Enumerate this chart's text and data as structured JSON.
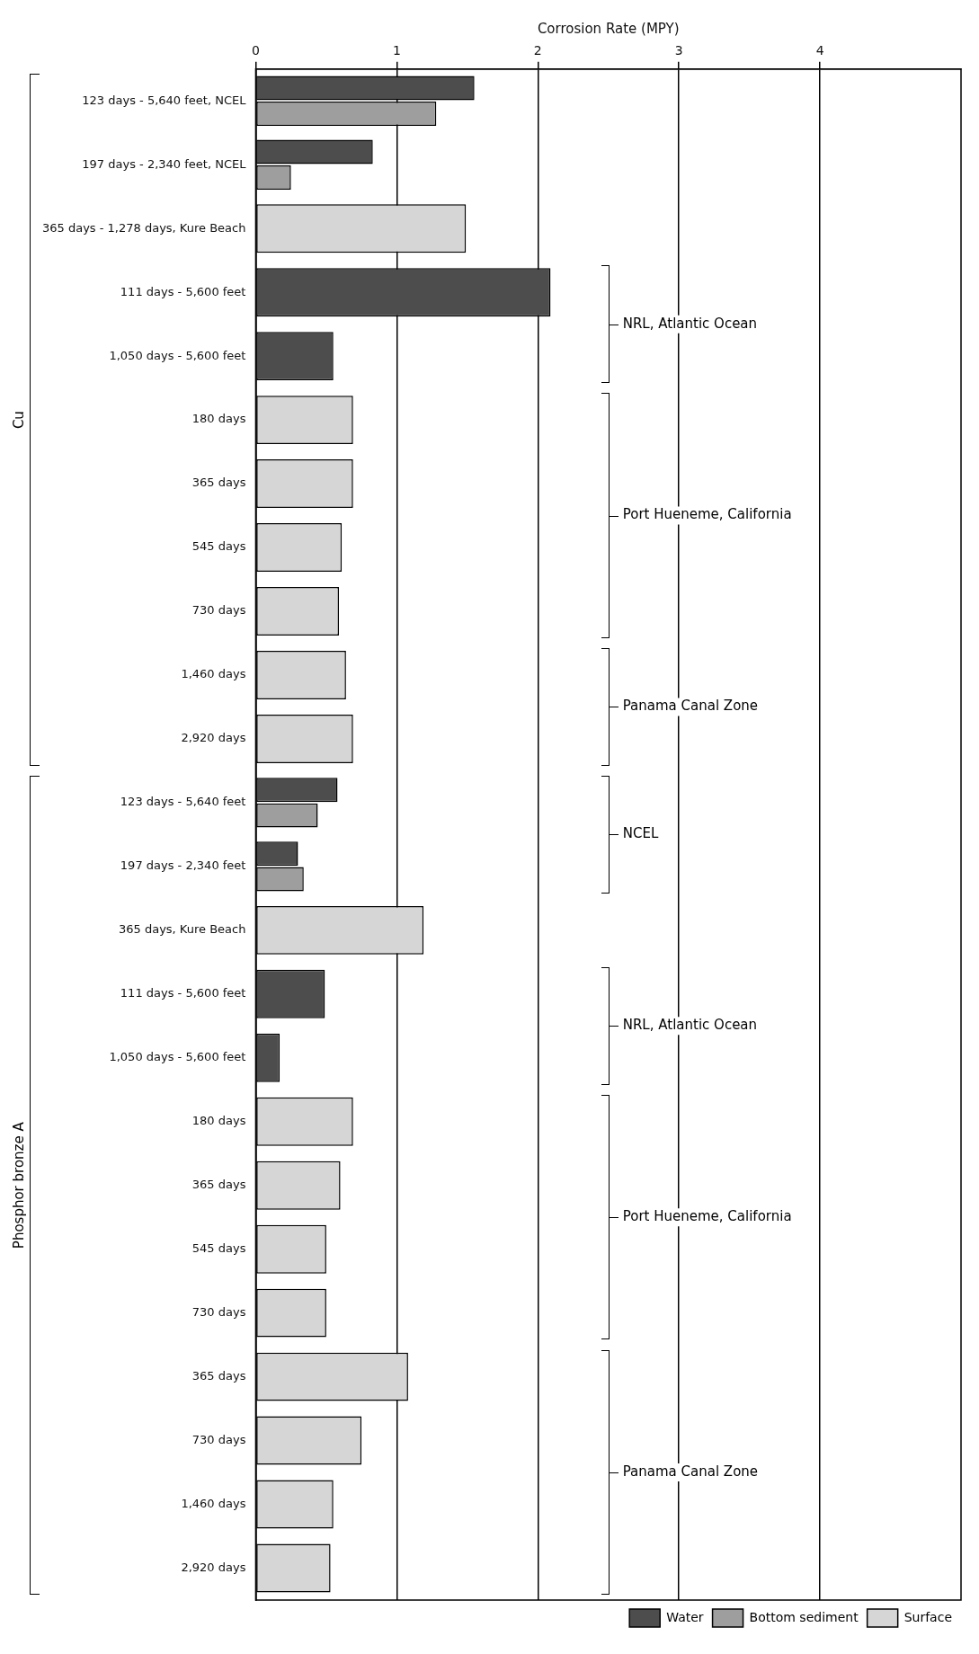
{
  "chart_data": {
    "type": "bar",
    "orientation": "horizontal",
    "xlabel": "Corrosion Rate (MPY)",
    "categories": [
      "123 days - 5,640 feet, NCEL",
      "197 days - 2,340 feet, NCEL",
      "365 days - 1,278 days, Kure Beach",
      "111 days - 5,600 feet",
      "1,050 days - 5,600 feet",
      "180 days",
      "365 days",
      "545 days",
      "730 days",
      "1,460 days",
      "2,920 days",
      "123 days - 5,640 feet",
      "197 days - 2,340 feet",
      "365 days, Kure Beach",
      "111 days - 5,600 feet",
      "1,050 days - 5,600 feet",
      "180 days",
      "365 days",
      "545 days",
      "730 days",
      "365 days",
      "730 days",
      "1,460 days",
      "2,920 days"
    ],
    "series": [
      {
        "name": "Water",
        "color": "#4d4d4d",
        "values": [
          1.55,
          0.83,
          null,
          2.09,
          0.55,
          null,
          null,
          null,
          null,
          null,
          null,
          0.58,
          0.3,
          null,
          0.49,
          0.17,
          null,
          null,
          null,
          null,
          null,
          null,
          null,
          null
        ]
      },
      {
        "name": "Bottom sediment",
        "color": "#9e9e9e",
        "values": [
          1.28,
          0.25,
          null,
          null,
          null,
          null,
          null,
          null,
          null,
          null,
          null,
          0.44,
          0.34,
          null,
          null,
          null,
          null,
          null,
          null,
          null,
          null,
          null,
          null,
          null
        ]
      },
      {
        "name": "Surface",
        "color": "#d6d6d6",
        "values": [
          null,
          null,
          1.49,
          null,
          null,
          0.69,
          0.69,
          0.61,
          0.59,
          0.64,
          0.69,
          null,
          null,
          1.19,
          null,
          null,
          0.69,
          0.6,
          0.5,
          0.5,
          1.08,
          0.75,
          0.55,
          0.53
        ]
      }
    ],
    "xlim": [
      0,
      5
    ],
    "xticks": [
      0,
      1,
      2,
      3,
      4
    ],
    "grid": "x",
    "legend": "bottom right",
    "annotations": [
      "NRL, Atlantic Ocean",
      "Port Hueneme, California",
      "Panama Canal Zone",
      "Cu",
      "NCEL",
      "NRL, Atlantic Ocean",
      "Port Hueneme, California",
      "Panama Canal Zone",
      "Phosphor bronze A"
    ]
  }
}
